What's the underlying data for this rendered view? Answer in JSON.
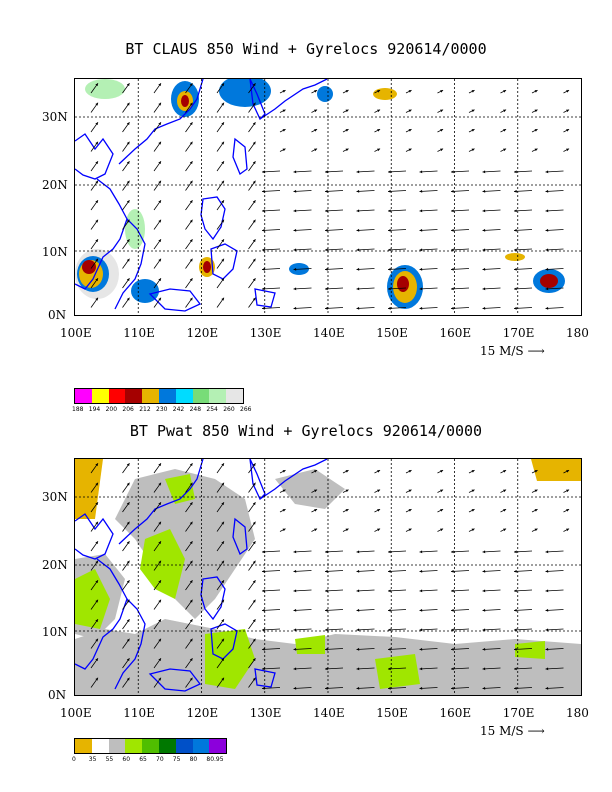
{
  "panels": [
    {
      "title": "BT CLAUS 850 Wind + Gyrelocs 920614/0000",
      "lat_labels": [
        "30N",
        "20N",
        "10N",
        "0N"
      ],
      "lon_labels": [
        "100E",
        "110E",
        "120E",
        "130E",
        "140E",
        "150E",
        "160E",
        "170E",
        "180"
      ],
      "scale_label": "15 M/S",
      "colorbar": {
        "colors": [
          "#ff00ff",
          "#ffff00",
          "#ff0000",
          "#a50000",
          "#e6b400",
          "#0078dc",
          "#00dcff",
          "#78dc78",
          "#b4f0b4",
          "#e6e6e6"
        ],
        "labels": [
          "188",
          "194",
          "200",
          "206",
          "212",
          "230",
          "242",
          "248",
          "254",
          "260",
          "266"
        ]
      }
    },
    {
      "title": "BT Pwat 850 Wind + Gyrelocs 920614/0000",
      "lat_labels": [
        "30N",
        "20N",
        "10N",
        "0N"
      ],
      "lon_labels": [
        "100E",
        "110E",
        "120E",
        "130E",
        "140E",
        "150E",
        "160E",
        "170E",
        "180"
      ],
      "scale_label": "15 M/S",
      "colorbar": {
        "colors": [
          "#e6b400",
          "#ffffff",
          "#bebebe",
          "#a0e600",
          "#50be00",
          "#007800",
          "#0050c8",
          "#0078dc",
          "#8c00dc"
        ],
        "labels": [
          "0",
          "35",
          "55",
          "60",
          "65",
          "70",
          "75",
          "80",
          "80.95"
        ]
      }
    }
  ]
}
